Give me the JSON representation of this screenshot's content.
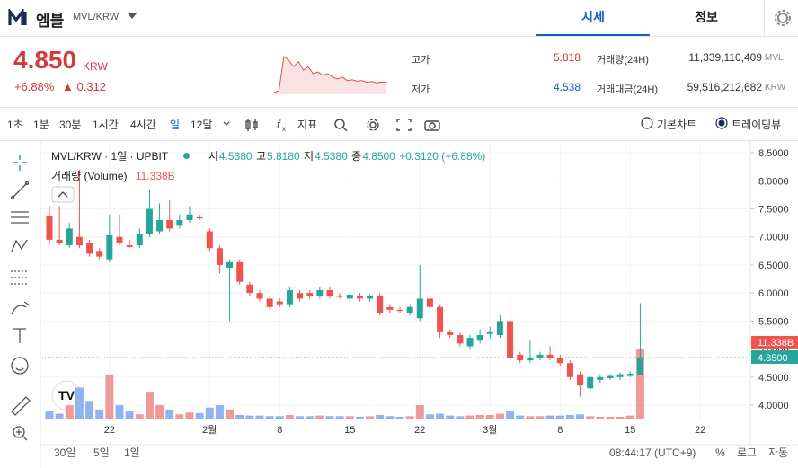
{
  "header": {
    "name": "엠블",
    "pair": "MVL/KRW",
    "tabs": [
      "시세",
      "정보"
    ]
  },
  "ticker": {
    "price": "4.850",
    "currency": "KRW",
    "change_rate": "+6.88%",
    "change": "0.312",
    "high_label": "고가",
    "high": "5.818",
    "low_label": "저가",
    "low": "4.538",
    "volume_label": "거래량(24H)",
    "volume": "11,339,110,409",
    "volume_unit": "MVL",
    "value_label": "거래대금(24H)",
    "value": "59,516,212,682",
    "value_unit": "KRW",
    "sparkline": [
      4.55,
      4.6,
      5.6,
      5.5,
      5.3,
      5.45,
      5.2,
      5.3,
      5.1,
      5.15,
      5.05,
      5.1,
      5.0,
      4.95,
      5.0,
      4.9,
      4.92,
      4.88,
      4.9,
      4.85,
      4.87,
      4.83,
      4.86,
      4.85
    ]
  },
  "toolbar": {
    "intervals": [
      "1초",
      "1분",
      "30분",
      "1시간",
      "4시간",
      "일",
      "12달"
    ],
    "indicator": "지표",
    "chart_modes": [
      "기본차트",
      "트레이딩뷰"
    ]
  },
  "footer": {
    "ranges": [
      "30일",
      "5일",
      "1일"
    ],
    "time": "08:44:17 (UTC+9)",
    "percent": "%",
    "log": "로그",
    "auto": "자동"
  },
  "chart_data": {
    "type": "candlestick",
    "legend": {
      "symbol": "MVL/KRW · 1일 · UPBIT",
      "open_label": "시",
      "open_value": "4.5380",
      "high_label": "고",
      "high_value": "5.8180",
      "low_label": "저",
      "low_value": "4.5380",
      "close_label": "종",
      "close_value": "4.8500",
      "change": "+0.3120 (+6.88%)",
      "volume_title": "거래량 (Volume)",
      "volume_value": "11.338B"
    },
    "categories": [
      null,
      null,
      null,
      null,
      null,
      null,
      "22",
      null,
      null,
      null,
      null,
      null,
      null,
      null,
      null,
      null,
      "2월",
      null,
      null,
      null,
      null,
      null,
      null,
      "8",
      null,
      null,
      null,
      null,
      null,
      null,
      "15",
      null,
      null,
      null,
      null,
      null,
      null,
      "22",
      null,
      null,
      null,
      null,
      null,
      null,
      "3월",
      null,
      null,
      null,
      null,
      null,
      null,
      "8",
      null,
      null,
      null,
      null,
      null,
      null,
      "15",
      null,
      null,
      null,
      null,
      null,
      null,
      "22",
      null,
      null,
      null,
      null
    ],
    "open": [
      7.38,
      6.95,
      6.85,
      7.0,
      6.9,
      6.75,
      6.6,
      7.0,
      6.85,
      6.85,
      7.05,
      7.1,
      7.3,
      7.2,
      7.3,
      7.35,
      7.1,
      6.8,
      6.45,
      6.55,
      6.15,
      6.0,
      5.9,
      5.85,
      5.8,
      6.0,
      6.0,
      5.95,
      6.05,
      5.95,
      5.9,
      5.95,
      5.9,
      5.95,
      5.75,
      5.7,
      5.65,
      5.55,
      5.9,
      5.75,
      5.3,
      5.25,
      5.05,
      5.15,
      5.27,
      5.25,
      5.5,
      4.9,
      4.8,
      4.85,
      4.9,
      4.85,
      4.75,
      4.55,
      4.3,
      4.45,
      4.48,
      4.5,
      4.52,
      4.538,
      null,
      null,
      null,
      null,
      null,
      null,
      null,
      null,
      null,
      null
    ],
    "high": [
      7.55,
      7.55,
      7.25,
      8.2,
      6.95,
      6.8,
      7.4,
      7.4,
      6.95,
      7.15,
      7.85,
      7.6,
      7.65,
      7.4,
      7.55,
      7.4,
      7.15,
      6.85,
      6.6,
      6.6,
      6.2,
      6.05,
      5.95,
      5.9,
      6.1,
      6.05,
      6.05,
      6.1,
      6.1,
      6.0,
      6.0,
      6.0,
      5.98,
      6.0,
      5.8,
      5.75,
      5.8,
      6.5,
      6.0,
      5.8,
      5.35,
      5.3,
      5.25,
      5.35,
      5.4,
      5.6,
      5.9,
      4.95,
      5.15,
      4.95,
      5.05,
      4.9,
      4.8,
      4.6,
      4.55,
      4.55,
      4.55,
      4.58,
      4.6,
      5.818,
      null,
      null,
      null,
      null,
      null,
      null,
      null,
      null,
      null,
      null
    ],
    "low": [
      6.85,
      6.85,
      6.8,
      6.8,
      6.65,
      6.6,
      6.55,
      6.85,
      6.8,
      6.8,
      7.0,
      7.05,
      7.1,
      7.15,
      7.25,
      7.3,
      6.75,
      6.35,
      5.5,
      6.15,
      5.95,
      5.85,
      5.7,
      5.75,
      5.75,
      5.85,
      5.9,
      5.9,
      5.9,
      5.9,
      5.85,
      5.85,
      5.85,
      5.6,
      5.65,
      5.65,
      5.6,
      5.5,
      5.7,
      5.2,
      5.2,
      5.05,
      5.0,
      5.1,
      5.2,
      5.2,
      4.8,
      4.75,
      4.75,
      4.8,
      4.8,
      4.7,
      4.45,
      4.15,
      4.25,
      4.4,
      4.45,
      4.45,
      4.5,
      4.538,
      null,
      null,
      null,
      null,
      null,
      null,
      null,
      null,
      null,
      null
    ],
    "close": [
      6.95,
      6.9,
      7.15,
      6.85,
      6.7,
      6.65,
      7.03,
      6.9,
      6.82,
      7.05,
      7.5,
      7.3,
      7.15,
      7.3,
      7.4,
      7.33,
      6.8,
      6.5,
      6.55,
      6.2,
      6.0,
      5.9,
      5.75,
      5.8,
      6.05,
      5.9,
      5.95,
      6.05,
      5.95,
      5.93,
      5.97,
      5.9,
      5.95,
      5.65,
      5.7,
      5.68,
      5.75,
      5.9,
      5.75,
      5.3,
      5.25,
      5.1,
      5.2,
      5.25,
      5.3,
      5.5,
      4.85,
      4.8,
      4.85,
      4.9,
      4.85,
      4.75,
      4.5,
      4.35,
      4.5,
      4.5,
      4.52,
      4.55,
      4.56,
      4.85,
      null,
      null,
      null,
      null,
      null,
      null,
      null,
      null,
      null,
      null
    ],
    "volume": [
      1.2,
      0.8,
      2.2,
      5.1,
      2.9,
      1.5,
      7.2,
      2.2,
      1.2,
      0.7,
      4.4,
      2.2,
      1.5,
      0.7,
      1.0,
      0.9,
      1.8,
      2.2,
      1.5,
      0.6,
      0.5,
      0.5,
      0.4,
      0.4,
      0.6,
      0.4,
      0.4,
      0.5,
      0.4,
      0.4,
      0.4,
      0.3,
      0.4,
      0.6,
      0.4,
      0.3,
      0.4,
      2.2,
      0.7,
      0.8,
      0.5,
      0.4,
      0.5,
      0.6,
      0.6,
      0.8,
      1.2,
      0.5,
      0.4,
      0.4,
      0.5,
      0.5,
      0.6,
      0.7,
      0.4,
      0.3,
      0.3,
      0.3,
      0.5,
      11.338,
      null,
      null,
      null,
      null,
      null,
      null,
      null,
      null,
      null,
      null
    ],
    "up_color": "#26a69a",
    "down_color": "#ef5350",
    "up_volume_color": "#ef9a9a",
    "down_volume_color": "#90b4f0",
    "ylim": [
      3.76,
      8.71
    ],
    "yticks": [
      {
        "value": 8.5,
        "label": "8.5000"
      },
      {
        "value": 8.0,
        "label": "8.0000"
      },
      {
        "value": 7.5,
        "label": "7.5000"
      },
      {
        "value": 7.0,
        "label": "7.0000"
      },
      {
        "value": 6.5,
        "label": "6.5000"
      },
      {
        "value": 6.0,
        "label": "6.0000"
      },
      {
        "value": 5.5,
        "label": "5.5000"
      },
      {
        "value": 5.0,
        "label": "5.0000"
      },
      {
        "value": 4.5,
        "label": "4.5000"
      },
      {
        "value": 4.0,
        "label": "4.0000"
      }
    ],
    "grid": true
  }
}
